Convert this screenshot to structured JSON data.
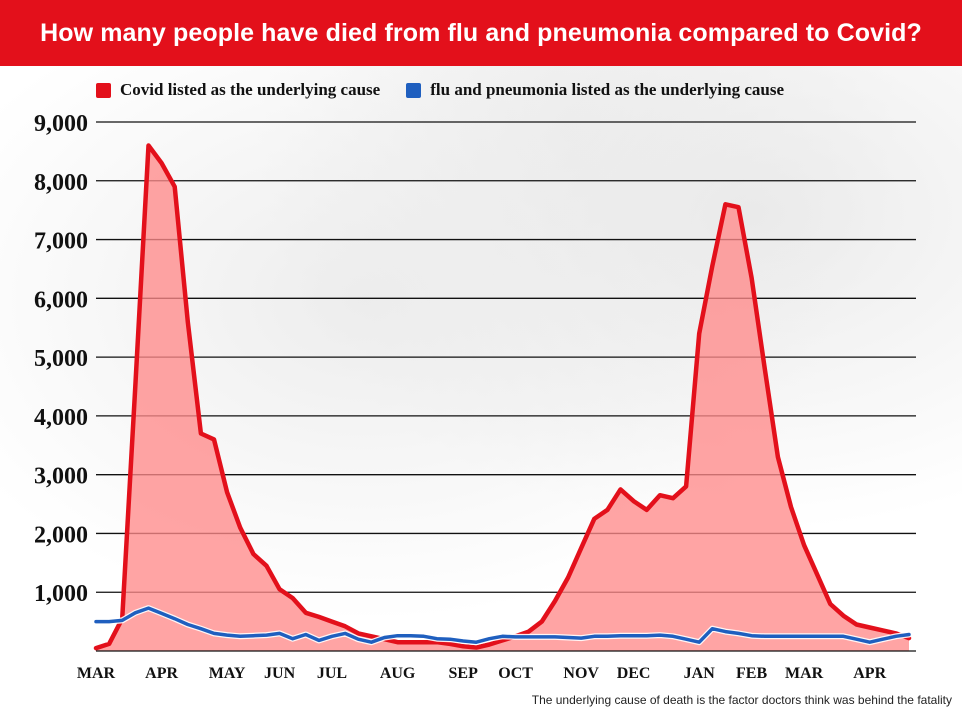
{
  "title": "How many people have died from flu and pneumonia compared to Covid?",
  "legend": {
    "covid_label": "Covid listed as the underlying cause",
    "flu_label": "flu and pneumonia listed as the underlying cause"
  },
  "footnote": "The underlying cause of death is the factor doctors think was behind the fatality",
  "colors": {
    "title_bar": "#e3101b",
    "covid_line": "#e3101b",
    "covid_fill": "#ff8a8a",
    "flu_line": "#1f5fbf",
    "grid": "#111111"
  },
  "chart_data": {
    "type": "area",
    "title": "How many people have died from flu and pneumonia compared to Covid?",
    "xlabel": "",
    "ylabel": "",
    "ylim": [
      0,
      9000
    ],
    "yticks": [
      1000,
      2000,
      3000,
      4000,
      5000,
      6000,
      7000,
      8000,
      9000
    ],
    "ytick_labels": [
      "1,000",
      "2,000",
      "3,000",
      "4,000",
      "5,000",
      "6,000",
      "7,000",
      "8,000",
      "9,000"
    ],
    "xtick_labels": [
      "MAR",
      "APR",
      "MAY",
      "JUN",
      "JUL",
      "AUG",
      "SEP",
      "OCT",
      "NOV",
      "DEC",
      "JAN",
      "FEB",
      "MAR",
      "APR"
    ],
    "grid": true,
    "legend_position": "top",
    "series": [
      {
        "name": "Covid listed as the underlying cause",
        "values": [
          50,
          120,
          550,
          4500,
          8600,
          8300,
          7900,
          5600,
          3700,
          3600,
          2700,
          2100,
          1650,
          1450,
          1050,
          900,
          650,
          580,
          500,
          420,
          300,
          250,
          200,
          150,
          150,
          150,
          150,
          120,
          80,
          60,
          110,
          180,
          250,
          330,
          500,
          850,
          1250,
          1750,
          2250,
          2400,
          2750,
          2550,
          2400,
          2650,
          2600,
          2800,
          5400,
          6550,
          7600,
          7550,
          6350,
          4800,
          3300,
          2450,
          1800,
          1300,
          800,
          600,
          450,
          400,
          350,
          300,
          220
        ]
      },
      {
        "name": "flu and pneumonia listed as the underlying cause",
        "values": [
          500,
          500,
          520,
          650,
          730,
          640,
          550,
          450,
          380,
          300,
          270,
          250,
          260,
          270,
          300,
          210,
          280,
          180,
          250,
          300,
          200,
          150,
          230,
          260,
          260,
          250,
          210,
          200,
          170,
          150,
          210,
          250,
          240,
          240,
          240,
          240,
          230,
          220,
          250,
          250,
          260,
          260,
          260,
          270,
          250,
          200,
          150,
          380,
          330,
          300,
          260,
          250,
          250,
          250,
          250,
          250,
          250,
          250,
          200,
          150,
          200,
          250,
          280
        ]
      }
    ]
  }
}
